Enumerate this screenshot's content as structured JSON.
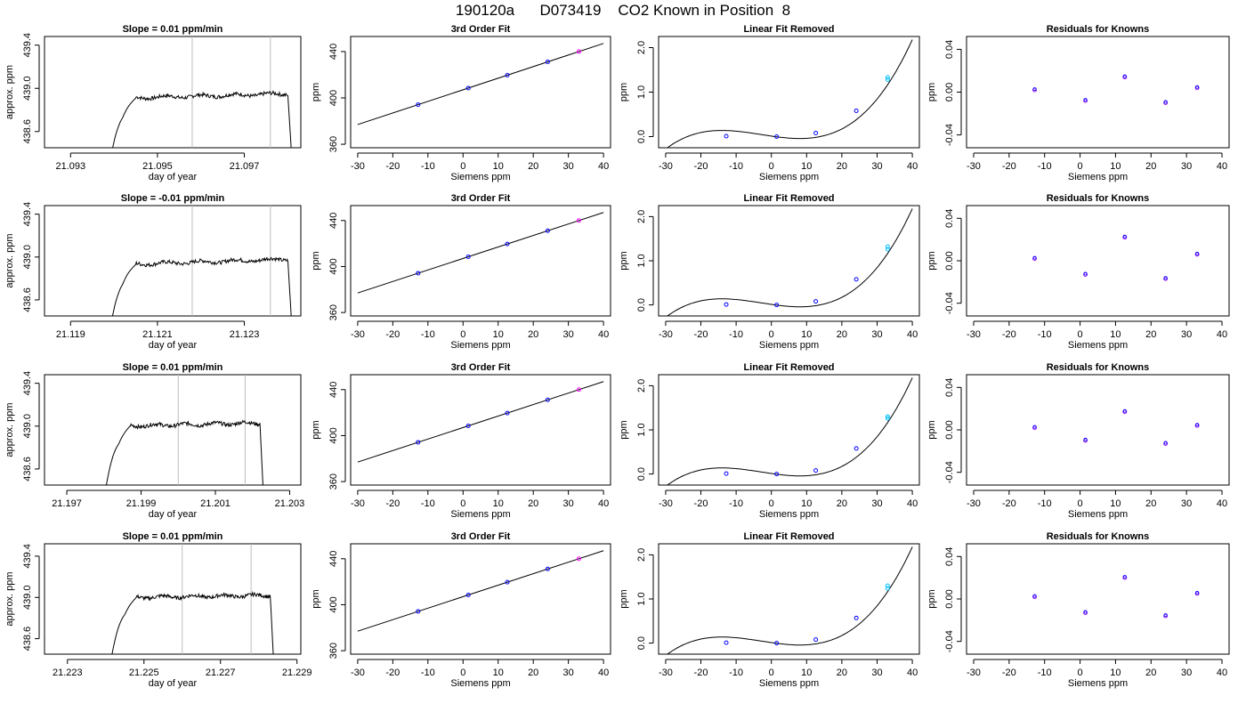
{
  "page": {
    "title": "190120a      D073419    CO2 Known in Position  8"
  },
  "colors": {
    "axis": "#000000",
    "line": "#000000",
    "vline": "#bdbdbd",
    "point_blue": "#0000ff",
    "point_purple": "#a020f0",
    "point_cyan": "#00bfff",
    "point_magenta": "#ff00ff",
    "point_red": "#ff0000"
  },
  "chart_data": [
    {
      "type": "line",
      "row": 1,
      "panel": "timeseries",
      "title": "Slope =  0.01  ppm/min",
      "xlabel": "day of year",
      "ylabel": "approx. ppm",
      "xlim": [
        21.0924,
        21.0983
      ],
      "ylim": [
        438.45,
        439.48
      ],
      "xticks": [
        21.093,
        21.095,
        21.097
      ],
      "xtick_labels": [
        "21.093",
        "21.095",
        "21.097"
      ],
      "yticks": [
        438.6,
        439.0,
        439.4
      ],
      "ytick_labels": [
        "438.6",
        "439.0",
        "439.4"
      ],
      "vlines": [
        21.0958,
        21.0976
      ],
      "series": [
        {
          "x_start": 21.0939,
          "x_rise": 21.0942,
          "x_drop": 21.098,
          "x_end": 21.0981,
          "bottom": 438.3,
          "level": 438.91,
          "trend": 0.04
        }
      ]
    },
    {
      "type": "line",
      "row": 1,
      "panel": "fit",
      "title": "3rd Order Fit",
      "xlabel": "Siemens ppm",
      "ylabel": "ppm",
      "xlim": [
        -32,
        42
      ],
      "ylim": [
        357,
        453
      ],
      "xticks": [
        -30,
        -20,
        -10,
        0,
        10,
        20,
        30,
        40
      ],
      "xtick_labels": [
        "-30",
        "-20",
        "-10",
        "0",
        "10",
        "20",
        "30",
        "40"
      ],
      "yticks": [
        360,
        400,
        440
      ],
      "ytick_labels": [
        "360",
        "400",
        "440"
      ],
      "curve": {
        "x0": -30,
        "x1": 40,
        "slope": 1.0,
        "intercept": 407
      },
      "points": [
        {
          "x": -12.8,
          "y": 394.2
        },
        {
          "x": 1.5,
          "y": 408.5
        },
        {
          "x": 12.6,
          "y": 419.6
        },
        {
          "x": 24.1,
          "y": 431.1
        },
        {
          "x": 33.0,
          "y": 440.0
        }
      ]
    },
    {
      "type": "line",
      "row": 1,
      "panel": "removed",
      "title": "Linear Fit Removed",
      "xlabel": "Siemens ppm",
      "ylabel": "ppm",
      "xlim": [
        -32,
        42
      ],
      "ylim": [
        -0.25,
        2.25
      ],
      "xticks": [
        -30,
        -20,
        -10,
        0,
        10,
        20,
        30,
        40
      ],
      "xtick_labels": [
        "-30",
        "-20",
        "-10",
        "0",
        "10",
        "20",
        "30",
        "40"
      ],
      "yticks": [
        0.0,
        1.0,
        2.0
      ],
      "ytick_labels": [
        "0.0",
        "1.0",
        "2.0"
      ],
      "points": [
        {
          "x": -12.8,
          "y": 0.01
        },
        {
          "x": 1.5,
          "y": 0.0
        },
        {
          "x": 12.6,
          "y": 0.08
        },
        {
          "x": 24.1,
          "y": 0.58
        },
        {
          "x": 33.0,
          "y": 1.28
        },
        {
          "x": 33.0,
          "y": 1.33
        }
      ]
    },
    {
      "type": "scatter",
      "row": 1,
      "panel": "residuals",
      "title": "Residuals for Knowns",
      "xlabel": "Siemens ppm",
      "ylabel": "ppm",
      "xlim": [
        -32,
        42
      ],
      "ylim": [
        -0.052,
        0.052
      ],
      "xticks": [
        -30,
        -20,
        -10,
        0,
        10,
        20,
        30,
        40
      ],
      "xtick_labels": [
        "-30",
        "-20",
        "-10",
        "0",
        "10",
        "20",
        "30",
        "40"
      ],
      "yticks": [
        -0.04,
        0.0,
        0.04
      ],
      "ytick_labels": [
        "-0.04",
        "0.00",
        "0.04"
      ],
      "points": [
        {
          "x": -12.8,
          "y": 0.002
        },
        {
          "x": 1.5,
          "y": -0.008
        },
        {
          "x": 12.6,
          "y": 0.014
        },
        {
          "x": 24.1,
          "y": -0.01
        },
        {
          "x": 33.0,
          "y": 0.004
        }
      ]
    },
    {
      "type": "line",
      "row": 2,
      "panel": "timeseries",
      "title": "Slope =  -0.01  ppm/min",
      "xlabel": "day of year",
      "ylabel": "approx. ppm",
      "xlim": [
        21.1184,
        21.1243
      ],
      "ylim": [
        438.45,
        439.48
      ],
      "xticks": [
        21.119,
        21.121,
        21.123
      ],
      "xtick_labels": [
        "21.119",
        "21.121",
        "21.123"
      ],
      "yticks": [
        438.6,
        439.0,
        439.4
      ],
      "ytick_labels": [
        "438.6",
        "439.0",
        "439.4"
      ],
      "vlines": [
        21.1218,
        21.1236
      ],
      "series": [
        {
          "x_start": 21.1199,
          "x_rise": 21.1202,
          "x_drop": 21.124,
          "x_end": 21.1241,
          "bottom": 438.3,
          "level": 438.93,
          "trend": 0.05
        }
      ]
    },
    {
      "type": "line",
      "row": 2,
      "panel": "fit",
      "title": "3rd Order Fit",
      "xlabel": "Siemens ppm",
      "ylabel": "ppm",
      "xlim": [
        -32,
        42
      ],
      "ylim": [
        357,
        453
      ],
      "xticks": [
        -30,
        -20,
        -10,
        0,
        10,
        20,
        30,
        40
      ],
      "xtick_labels": [
        "-30",
        "-20",
        "-10",
        "0",
        "10",
        "20",
        "30",
        "40"
      ],
      "yticks": [
        360,
        400,
        440
      ],
      "ytick_labels": [
        "360",
        "400",
        "440"
      ],
      "curve": {
        "x0": -30,
        "x1": 40,
        "slope": 1.0,
        "intercept": 407
      },
      "points": [
        {
          "x": -12.8,
          "y": 394.2
        },
        {
          "x": 1.5,
          "y": 408.5
        },
        {
          "x": 12.6,
          "y": 419.6
        },
        {
          "x": 24.1,
          "y": 431.1
        },
        {
          "x": 33.0,
          "y": 440.0
        }
      ]
    },
    {
      "type": "line",
      "row": 2,
      "panel": "removed",
      "title": "Linear Fit Removed",
      "xlabel": "Siemens ppm",
      "ylabel": "ppm",
      "xlim": [
        -32,
        42
      ],
      "ylim": [
        -0.25,
        2.25
      ],
      "xticks": [
        -30,
        -20,
        -10,
        0,
        10,
        20,
        30,
        40
      ],
      "xtick_labels": [
        "-30",
        "-20",
        "-10",
        "0",
        "10",
        "20",
        "30",
        "40"
      ],
      "yticks": [
        0.0,
        1.0,
        2.0
      ],
      "ytick_labels": [
        "0.0",
        "1.0",
        "2.0"
      ],
      "points": [
        {
          "x": -12.8,
          "y": 0.01
        },
        {
          "x": 1.5,
          "y": 0.0
        },
        {
          "x": 12.6,
          "y": 0.08
        },
        {
          "x": 24.1,
          "y": 0.58
        },
        {
          "x": 33.0,
          "y": 1.26
        },
        {
          "x": 33.0,
          "y": 1.32
        }
      ]
    },
    {
      "type": "scatter",
      "row": 2,
      "panel": "residuals",
      "title": "Residuals for Knowns",
      "xlabel": "Siemens ppm",
      "ylabel": "ppm",
      "xlim": [
        -32,
        42
      ],
      "ylim": [
        -0.052,
        0.052
      ],
      "xticks": [
        -30,
        -20,
        -10,
        0,
        10,
        20,
        30,
        40
      ],
      "xtick_labels": [
        "-30",
        "-20",
        "-10",
        "0",
        "10",
        "20",
        "30",
        "40"
      ],
      "yticks": [
        -0.04,
        0.0,
        0.04
      ],
      "ytick_labels": [
        "-0.04",
        "0.00",
        "0.04"
      ],
      "points": [
        {
          "x": -12.8,
          "y": 0.002
        },
        {
          "x": 1.5,
          "y": -0.013
        },
        {
          "x": 12.6,
          "y": 0.022
        },
        {
          "x": 24.1,
          "y": -0.017
        },
        {
          "x": 33.0,
          "y": 0.006
        }
      ]
    },
    {
      "type": "line",
      "row": 3,
      "panel": "timeseries",
      "title": "Slope =  0.01  ppm/min",
      "xlabel": "day of year",
      "ylabel": "approx. ppm",
      "xlim": [
        21.1964,
        21.2033
      ],
      "ylim": [
        438.45,
        439.48
      ],
      "xticks": [
        21.197,
        21.199,
        21.201,
        21.203
      ],
      "xtick_labels": [
        "21.197",
        "21.199",
        "21.201",
        "21.203"
      ],
      "yticks": [
        438.6,
        439.0,
        439.4
      ],
      "ytick_labels": [
        "438.6",
        "439.0",
        "439.4"
      ],
      "vlines": [
        21.2,
        21.2018
      ],
      "series": [
        {
          "x_start": 21.198,
          "x_rise": 21.1984,
          "x_drop": 21.2022,
          "x_end": 21.2023,
          "bottom": 438.3,
          "level": 439.0,
          "trend": 0.03
        }
      ]
    },
    {
      "type": "line",
      "row": 3,
      "panel": "fit",
      "title": "3rd Order Fit",
      "xlabel": "Siemens ppm",
      "ylabel": "ppm",
      "xlim": [
        -32,
        42
      ],
      "ylim": [
        357,
        453
      ],
      "xticks": [
        -30,
        -20,
        -10,
        0,
        10,
        20,
        30,
        40
      ],
      "xtick_labels": [
        "-30",
        "-20",
        "-10",
        "0",
        "10",
        "20",
        "30",
        "40"
      ],
      "yticks": [
        360,
        400,
        440
      ],
      "ytick_labels": [
        "360",
        "400",
        "440"
      ],
      "curve": {
        "x0": -30,
        "x1": 40,
        "slope": 1.0,
        "intercept": 407
      },
      "points": [
        {
          "x": -12.8,
          "y": 394.2
        },
        {
          "x": 1.5,
          "y": 408.5
        },
        {
          "x": 12.6,
          "y": 419.6
        },
        {
          "x": 24.1,
          "y": 431.1
        },
        {
          "x": 33.0,
          "y": 440.0
        }
      ]
    },
    {
      "type": "line",
      "row": 3,
      "panel": "removed",
      "title": "Linear Fit Removed",
      "xlabel": "Siemens ppm",
      "ylabel": "ppm",
      "xlim": [
        -32,
        42
      ],
      "ylim": [
        -0.25,
        2.25
      ],
      "xticks": [
        -30,
        -20,
        -10,
        0,
        10,
        20,
        30,
        40
      ],
      "xtick_labels": [
        "-30",
        "-20",
        "-10",
        "0",
        "10",
        "20",
        "30",
        "40"
      ],
      "yticks": [
        0.0,
        1.0,
        2.0
      ],
      "ytick_labels": [
        "0.0",
        "1.0",
        "2.0"
      ],
      "points": [
        {
          "x": -12.8,
          "y": 0.01
        },
        {
          "x": 1.5,
          "y": 0.0
        },
        {
          "x": 12.6,
          "y": 0.08
        },
        {
          "x": 24.1,
          "y": 0.58
        },
        {
          "x": 33.0,
          "y": 1.26
        },
        {
          "x": 33.0,
          "y": 1.3
        }
      ]
    },
    {
      "type": "scatter",
      "row": 3,
      "panel": "residuals",
      "title": "Residuals for Knowns",
      "xlabel": "Siemens ppm",
      "ylabel": "ppm",
      "xlim": [
        -32,
        42
      ],
      "ylim": [
        -0.052,
        0.052
      ],
      "xticks": [
        -30,
        -20,
        -10,
        0,
        10,
        20,
        30,
        40
      ],
      "xtick_labels": [
        "-30",
        "-20",
        "-10",
        "0",
        "10",
        "20",
        "30",
        "40"
      ],
      "yticks": [
        -0.04,
        0.0,
        0.04
      ],
      "ytick_labels": [
        "-0.04",
        "0.00",
        "0.04"
      ],
      "points": [
        {
          "x": -12.8,
          "y": 0.002
        },
        {
          "x": 1.5,
          "y": -0.01
        },
        {
          "x": 12.6,
          "y": 0.017
        },
        {
          "x": 24.1,
          "y": -0.013
        },
        {
          "x": 33.0,
          "y": 0.004
        }
      ]
    },
    {
      "type": "line",
      "row": 4,
      "panel": "timeseries",
      "title": "Slope =  0.01  ppm/min",
      "xlabel": "day of year",
      "ylabel": "approx. ppm",
      "xlim": [
        21.2224,
        21.2291
      ],
      "ylim": [
        438.45,
        439.52
      ],
      "xticks": [
        21.223,
        21.225,
        21.227,
        21.229
      ],
      "xtick_labels": [
        "21.223",
        "21.225",
        "21.227",
        "21.229"
      ],
      "yticks": [
        438.6,
        439.0,
        439.4
      ],
      "ytick_labels": [
        "438.6",
        "439.0",
        "439.4"
      ],
      "vlines": [
        21.226,
        21.2278
      ],
      "series": [
        {
          "x_start": 21.2241,
          "x_rise": 21.2245,
          "x_drop": 21.2283,
          "x_end": 21.2284,
          "bottom": 438.3,
          "level": 439.0,
          "trend": 0.02
        }
      ]
    },
    {
      "type": "line",
      "row": 4,
      "panel": "fit",
      "title": "3rd Order Fit",
      "xlabel": "Siemens ppm",
      "ylabel": "ppm",
      "xlim": [
        -32,
        42
      ],
      "ylim": [
        357,
        453
      ],
      "xticks": [
        -30,
        -20,
        -10,
        0,
        10,
        20,
        30,
        40
      ],
      "xtick_labels": [
        "-30",
        "-20",
        "-10",
        "0",
        "10",
        "20",
        "30",
        "40"
      ],
      "yticks": [
        360,
        400,
        440
      ],
      "ytick_labels": [
        "360",
        "400",
        "440"
      ],
      "curve": {
        "x0": -30,
        "x1": 40,
        "slope": 1.0,
        "intercept": 407
      },
      "points": [
        {
          "x": -12.8,
          "y": 394.2
        },
        {
          "x": 1.5,
          "y": 408.5
        },
        {
          "x": 12.6,
          "y": 419.6
        },
        {
          "x": 24.1,
          "y": 431.1
        },
        {
          "x": 33.0,
          "y": 440.0
        }
      ]
    },
    {
      "type": "line",
      "row": 4,
      "panel": "removed",
      "title": "Linear Fit Removed",
      "xlabel": "Siemens ppm",
      "ylabel": "ppm",
      "xlim": [
        -32,
        42
      ],
      "ylim": [
        -0.25,
        2.25
      ],
      "xticks": [
        -30,
        -20,
        -10,
        0,
        10,
        20,
        30,
        40
      ],
      "xtick_labels": [
        "-30",
        "-20",
        "-10",
        "0",
        "10",
        "20",
        "30",
        "40"
      ],
      "yticks": [
        0.0,
        1.0,
        2.0
      ],
      "ytick_labels": [
        "0.0",
        "1.0",
        "2.0"
      ],
      "points": [
        {
          "x": -12.8,
          "y": 0.01
        },
        {
          "x": 1.5,
          "y": 0.0
        },
        {
          "x": 12.6,
          "y": 0.08
        },
        {
          "x": 24.1,
          "y": 0.57
        },
        {
          "x": 33.0,
          "y": 1.24
        },
        {
          "x": 33.0,
          "y": 1.3
        }
      ]
    },
    {
      "type": "scatter",
      "row": 4,
      "panel": "residuals",
      "title": "Residuals for Knowns",
      "xlabel": "Siemens ppm",
      "ylabel": "ppm",
      "xlim": [
        -32,
        42
      ],
      "ylim": [
        -0.052,
        0.052
      ],
      "xticks": [
        -30,
        -20,
        -10,
        0,
        10,
        20,
        30,
        40
      ],
      "xtick_labels": [
        "-30",
        "-20",
        "-10",
        "0",
        "10",
        "20",
        "30",
        "40"
      ],
      "yticks": [
        -0.04,
        0.0,
        0.04
      ],
      "ytick_labels": [
        "-0.04",
        "0.00",
        "0.04"
      ],
      "points": [
        {
          "x": -12.8,
          "y": 0.002
        },
        {
          "x": 1.5,
          "y": -0.013
        },
        {
          "x": 12.6,
          "y": 0.02
        },
        {
          "x": 24.1,
          "y": -0.016
        },
        {
          "x": 33.0,
          "y": 0.005
        }
      ]
    }
  ]
}
